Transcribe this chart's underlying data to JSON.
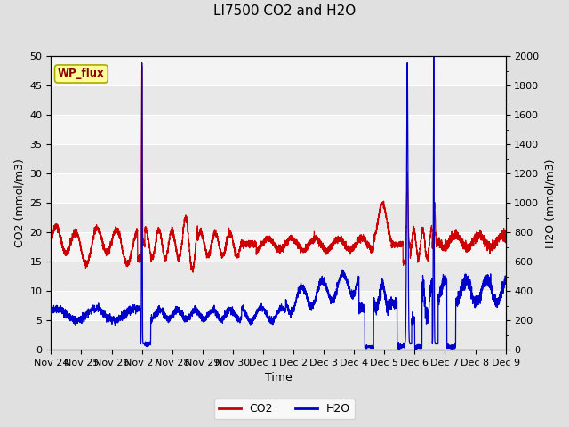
{
  "title": "LI7500 CO2 and H2O",
  "xlabel": "Time",
  "ylabel_left": "CO2 (mmol/m3)",
  "ylabel_right": "H2O (mmol/m3)",
  "xlim": [
    0,
    15.5
  ],
  "ylim_left": [
    0,
    50
  ],
  "ylim_right": [
    0,
    2000
  ],
  "yticks_left": [
    0,
    5,
    10,
    15,
    20,
    25,
    30,
    35,
    40,
    45,
    50
  ],
  "yticks_right": [
    0,
    200,
    400,
    600,
    800,
    1000,
    1200,
    1400,
    1600,
    1800,
    2000
  ],
  "xtick_labels": [
    "Nov 24",
    "Nov 25",
    "Nov 26",
    "Nov 27",
    "Nov 28",
    "Nov 29",
    "Nov 30",
    "Dec 1",
    "Dec 2",
    "Dec 3",
    "Dec 4",
    "Dec 5",
    "Dec 6",
    "Dec 7",
    "Dec 8",
    "Dec 9"
  ],
  "co2_color": "#cc0000",
  "h2o_color": "#0000cc",
  "fig_bg_color": "#e0e0e0",
  "plot_bg_light": "#f0f0f0",
  "plot_bg_dark": "#e0e0e0",
  "annotation_text": "WP_flux",
  "legend_co2": "CO2",
  "legend_h2o": "H2O",
  "title_fontsize": 11,
  "axis_fontsize": 9,
  "tick_fontsize": 8,
  "line_width": 0.9
}
